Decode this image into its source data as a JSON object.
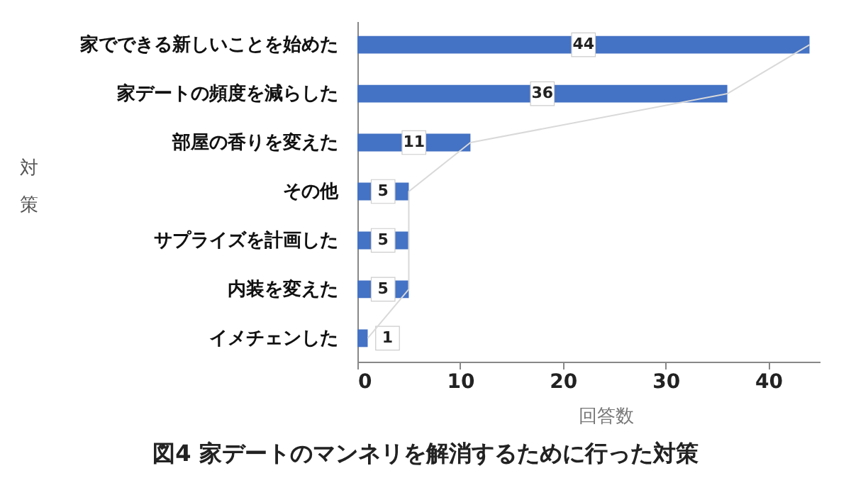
{
  "chart_data": {
    "type": "bar",
    "orientation": "horizontal",
    "title": "図4 家デートのマンネリを解消するために行った対策",
    "xlabel": "回答数",
    "ylabel": "対策",
    "categories": [
      "家でできる新しいことを始めた",
      "家デートの頻度を減らした",
      "部屋の香りを変えた",
      "その他",
      "サプライズを計画した",
      "内装を変えた",
      "イメチェンした"
    ],
    "series": [
      {
        "color": "#4472c4",
        "values": [
          44,
          36,
          11,
          5,
          5,
          5,
          1
        ],
        "value_labels": [
          "44",
          "36",
          "11",
          "5",
          "5",
          "5",
          "1"
        ]
      },
      {
        "type": "line",
        "color": "#d9d9d9",
        "values": [
          44,
          36,
          11,
          5,
          5,
          5,
          1
        ]
      }
    ],
    "xlim": [
      0,
      45
    ],
    "xticks": [
      0,
      10,
      20,
      30,
      40
    ],
    "grid": false,
    "marker": "none"
  }
}
